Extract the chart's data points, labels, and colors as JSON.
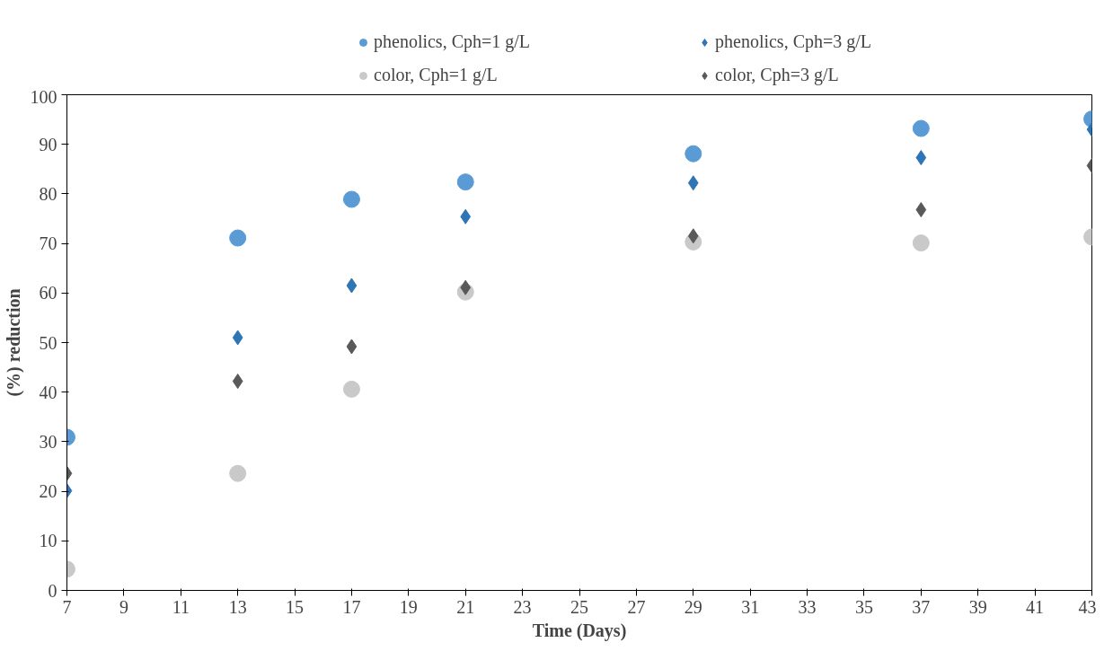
{
  "chart_data": {
    "type": "scatter",
    "xlabel": "Time (Days)",
    "ylabel": "(%) reduction",
    "x": [
      7,
      13,
      17,
      21,
      29,
      37,
      43
    ],
    "series": [
      {
        "name": "phenolics, Cph=1 g/L",
        "color": "#5b9bd5",
        "marker": "circle",
        "values": [
          30.9,
          71.1,
          78.9,
          82.4,
          88.1,
          93.2,
          95.1
        ]
      },
      {
        "name": "phenolics, Cph=3 g/L",
        "color": "#2e75b6",
        "marker": "diamond",
        "values": [
          20.1,
          51,
          61.5,
          75.4,
          82.2,
          87.3,
          93
        ]
      },
      {
        "name": "color, Cph=1 g/L",
        "color": "#c9c9c9",
        "marker": "circle",
        "values": [
          4.3,
          23.6,
          40.6,
          60.2,
          70.3,
          70.1,
          71.3
        ]
      },
      {
        "name": "color, Cph=3 g/L",
        "color": "#595959",
        "marker": "diamond",
        "values": [
          23.6,
          42.2,
          49.2,
          61.1,
          71.5,
          76.8,
          85.7
        ]
      }
    ],
    "xlim": [
      7,
      43
    ],
    "xticks": [
      7,
      9,
      11,
      13,
      15,
      17,
      19,
      21,
      23,
      25,
      27,
      29,
      31,
      33,
      35,
      37,
      39,
      41,
      43
    ],
    "ylim": [
      0,
      100
    ],
    "yticks": [
      0,
      10,
      20,
      30,
      40,
      50,
      60,
      70,
      80,
      90,
      100
    ],
    "grid": false,
    "legend": "top"
  }
}
